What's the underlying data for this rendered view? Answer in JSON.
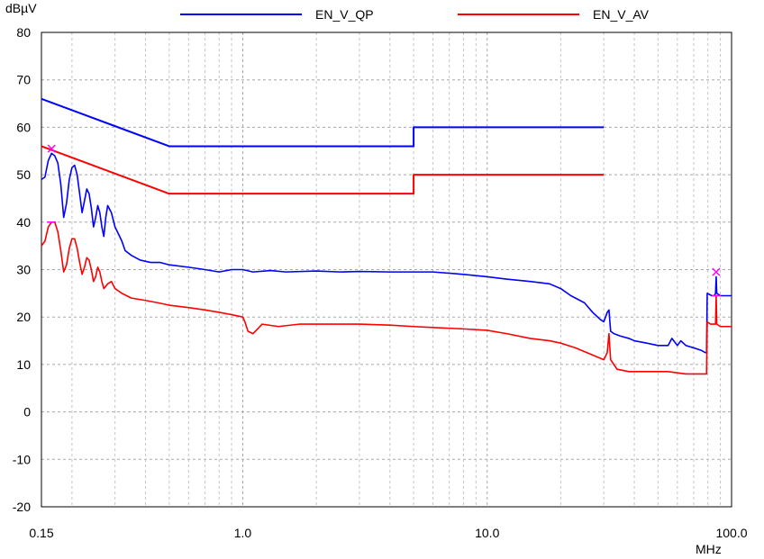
{
  "chart_data": {
    "type": "line",
    "ylabel": "dBµV",
    "xlabel": "MHz",
    "x_scale": "log",
    "xlim": [
      0.15,
      100.0
    ],
    "ylim": [
      -20,
      80
    ],
    "grid": true,
    "legend_position": "top",
    "x_tick_labels": [
      {
        "value": 0.15,
        "label": "0.15"
      },
      {
        "value": 1.0,
        "label": "1.0"
      },
      {
        "value": 10.0,
        "label": "10.0"
      },
      {
        "value": 100.0,
        "label": "100.0"
      }
    ],
    "y_ticks": [
      -20,
      -10,
      0,
      10,
      20,
      30,
      40,
      50,
      60,
      70,
      80
    ],
    "series": [
      {
        "name": "EN_V_QP",
        "role": "limit",
        "color": "#0000ff",
        "points": [
          [
            0.15,
            66
          ],
          [
            0.5,
            56
          ],
          [
            5.0,
            56
          ],
          [
            5.0,
            60
          ],
          [
            30.0,
            60
          ]
        ]
      },
      {
        "name": "EN_V_AV",
        "role": "limit",
        "color": "#ff0000",
        "points": [
          [
            0.15,
            56
          ],
          [
            0.5,
            46
          ],
          [
            5.0,
            46
          ],
          [
            5.0,
            50
          ],
          [
            30.0,
            50
          ]
        ]
      },
      {
        "role": "measurement",
        "color": "#0000ff",
        "points": [
          [
            0.15,
            49
          ],
          [
            0.155,
            49.5
          ],
          [
            0.16,
            53
          ],
          [
            0.165,
            54.5
          ],
          [
            0.17,
            54
          ],
          [
            0.175,
            52.5
          ],
          [
            0.18,
            48
          ],
          [
            0.185,
            41
          ],
          [
            0.19,
            44
          ],
          [
            0.195,
            49
          ],
          [
            0.2,
            51.5
          ],
          [
            0.205,
            52
          ],
          [
            0.21,
            50
          ],
          [
            0.215,
            46
          ],
          [
            0.22,
            42
          ],
          [
            0.225,
            44.5
          ],
          [
            0.23,
            47
          ],
          [
            0.235,
            46
          ],
          [
            0.24,
            43
          ],
          [
            0.245,
            39
          ],
          [
            0.25,
            41
          ],
          [
            0.255,
            43.5
          ],
          [
            0.26,
            42
          ],
          [
            0.265,
            39
          ],
          [
            0.27,
            37
          ],
          [
            0.275,
            41
          ],
          [
            0.28,
            43.5
          ],
          [
            0.29,
            42
          ],
          [
            0.3,
            39
          ],
          [
            0.31,
            37.5
          ],
          [
            0.32,
            36
          ],
          [
            0.33,
            34
          ],
          [
            0.35,
            33
          ],
          [
            0.38,
            32
          ],
          [
            0.42,
            31.5
          ],
          [
            0.46,
            31.5
          ],
          [
            0.5,
            31
          ],
          [
            0.6,
            30.5
          ],
          [
            0.7,
            30
          ],
          [
            0.8,
            29.5
          ],
          [
            0.9,
            30
          ],
          [
            1.0,
            30
          ],
          [
            1.1,
            29.5
          ],
          [
            1.3,
            29.8
          ],
          [
            1.5,
            29.5
          ],
          [
            2.0,
            29.7
          ],
          [
            2.5,
            29.5
          ],
          [
            3.0,
            29.6
          ],
          [
            4.0,
            29.5
          ],
          [
            5.0,
            29.5
          ],
          [
            6.0,
            29.5
          ],
          [
            8.0,
            29
          ],
          [
            10.0,
            28.5
          ],
          [
            12.0,
            28
          ],
          [
            15.0,
            27.5
          ],
          [
            18.0,
            27
          ],
          [
            20.0,
            26
          ],
          [
            22.0,
            24.5
          ],
          [
            25.0,
            23
          ],
          [
            27.0,
            21
          ],
          [
            29.0,
            19.5
          ],
          [
            30.0,
            19
          ],
          [
            31.0,
            21
          ],
          [
            31.5,
            21.5
          ],
          [
            32.0,
            17
          ],
          [
            33.0,
            16.5
          ],
          [
            35.0,
            16
          ],
          [
            38.0,
            15.5
          ],
          [
            40.0,
            15
          ],
          [
            45.0,
            14.5
          ],
          [
            50.0,
            14
          ],
          [
            55.0,
            14
          ],
          [
            57.0,
            15.5
          ],
          [
            60.0,
            14
          ],
          [
            62.0,
            15
          ],
          [
            65.0,
            14
          ],
          [
            70.0,
            13.5
          ],
          [
            75.0,
            13
          ],
          [
            78.0,
            12.5
          ],
          [
            79.0,
            12.5
          ],
          [
            79.5,
            25
          ],
          [
            83.0,
            24.5
          ],
          [
            85.0,
            24.5
          ],
          [
            86.0,
            25
          ],
          [
            86.5,
            28.5
          ],
          [
            87.0,
            25
          ],
          [
            90.0,
            24.5
          ],
          [
            95.0,
            24.5
          ],
          [
            100.0,
            24.5
          ]
        ]
      },
      {
        "role": "measurement",
        "color": "#ff0000",
        "points": [
          [
            0.15,
            35
          ],
          [
            0.155,
            36
          ],
          [
            0.16,
            39
          ],
          [
            0.165,
            40
          ],
          [
            0.17,
            40
          ],
          [
            0.175,
            38
          ],
          [
            0.18,
            34
          ],
          [
            0.185,
            29.5
          ],
          [
            0.19,
            31
          ],
          [
            0.195,
            34.5
          ],
          [
            0.2,
            36.5
          ],
          [
            0.205,
            36.5
          ],
          [
            0.21,
            34.5
          ],
          [
            0.215,
            31.5
          ],
          [
            0.22,
            29
          ],
          [
            0.225,
            30.5
          ],
          [
            0.23,
            32.5
          ],
          [
            0.235,
            32
          ],
          [
            0.24,
            30
          ],
          [
            0.245,
            27.5
          ],
          [
            0.25,
            28.5
          ],
          [
            0.255,
            30.5
          ],
          [
            0.26,
            29.5
          ],
          [
            0.265,
            27.5
          ],
          [
            0.27,
            26
          ],
          [
            0.28,
            27
          ],
          [
            0.29,
            27.5
          ],
          [
            0.3,
            26
          ],
          [
            0.32,
            25
          ],
          [
            0.35,
            24
          ],
          [
            0.4,
            23.5
          ],
          [
            0.45,
            23
          ],
          [
            0.5,
            22.5
          ],
          [
            0.6,
            22
          ],
          [
            0.7,
            21.5
          ],
          [
            0.8,
            21
          ],
          [
            0.9,
            20.5
          ],
          [
            1.0,
            20
          ],
          [
            1.02,
            19
          ],
          [
            1.05,
            17
          ],
          [
            1.1,
            16.5
          ],
          [
            1.15,
            17.5
          ],
          [
            1.2,
            18.5
          ],
          [
            1.4,
            18
          ],
          [
            1.7,
            18.5
          ],
          [
            2.0,
            18.5
          ],
          [
            2.5,
            18.5
          ],
          [
            3.0,
            18.5
          ],
          [
            4.0,
            18.3
          ],
          [
            5.0,
            18
          ],
          [
            6.0,
            17.8
          ],
          [
            8.0,
            17.5
          ],
          [
            10.0,
            17.2
          ],
          [
            12.0,
            16.5
          ],
          [
            15.0,
            15.5
          ],
          [
            18.0,
            15
          ],
          [
            20.0,
            14.5
          ],
          [
            23.0,
            13.5
          ],
          [
            27.0,
            12
          ],
          [
            30.0,
            11
          ],
          [
            31.0,
            12.5
          ],
          [
            31.5,
            16.5
          ],
          [
            32.0,
            11
          ],
          [
            34.0,
            9
          ],
          [
            38.0,
            8.5
          ],
          [
            45.0,
            8.5
          ],
          [
            55.0,
            8.5
          ],
          [
            65.0,
            8
          ],
          [
            75.0,
            8
          ],
          [
            79.0,
            8
          ],
          [
            79.5,
            19
          ],
          [
            82.0,
            18.5
          ],
          [
            85.0,
            18.5
          ],
          [
            86.0,
            18.5
          ],
          [
            86.5,
            24.5
          ],
          [
            87.0,
            18.5
          ],
          [
            90.0,
            18
          ],
          [
            95.0,
            18
          ],
          [
            100.0,
            18
          ]
        ]
      }
    ],
    "markers": [
      {
        "x": 0.165,
        "y": 55.5,
        "color": "#ff00ff",
        "shape": "x"
      },
      {
        "x": 0.165,
        "y": 40,
        "color": "#ff00ff",
        "shape": "dash"
      },
      {
        "x": 86.5,
        "y": 29.5,
        "color": "#ff00ff",
        "shape": "x"
      },
      {
        "x": 86.5,
        "y": 24.5,
        "color": "#ff00ff",
        "shape": "dash"
      }
    ]
  }
}
